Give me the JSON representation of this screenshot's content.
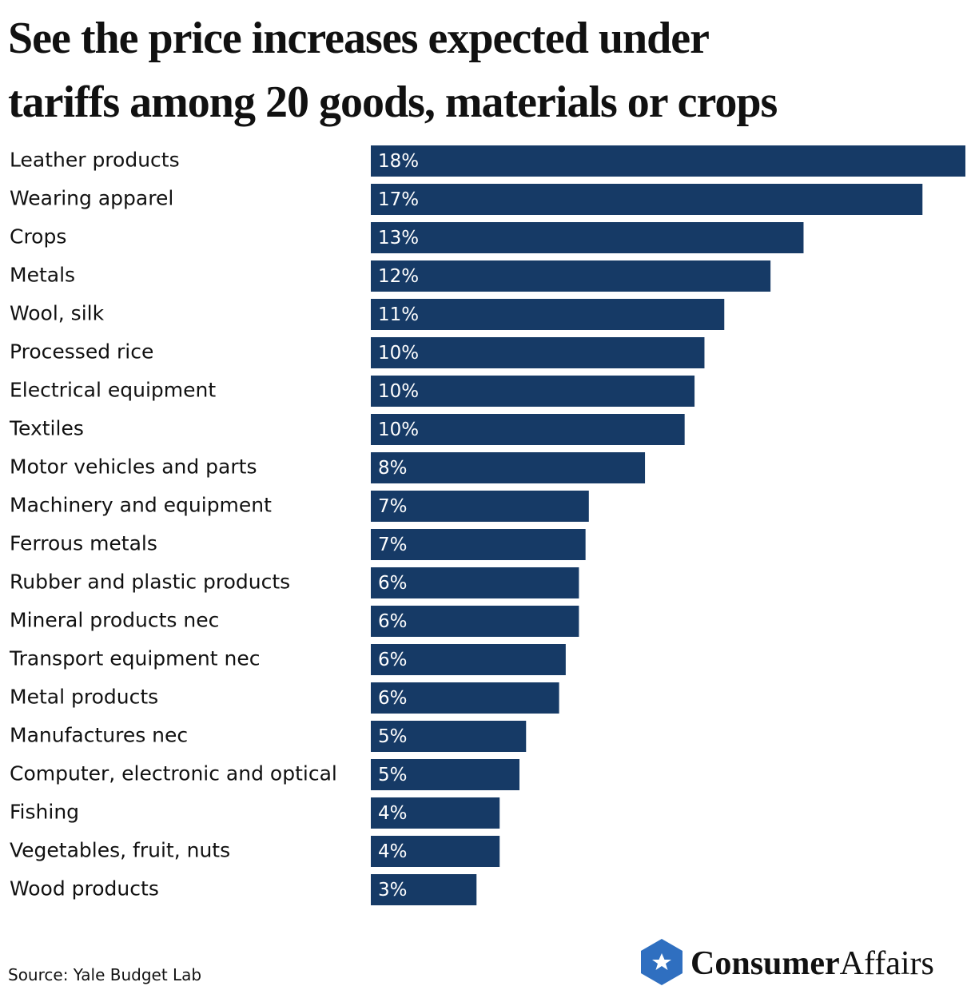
{
  "chart_data": {
    "type": "bar",
    "orientation": "horizontal",
    "title": "See the price increases expected under tariffs among 20 goods, materials or crops",
    "categories": [
      "Leather products",
      "Wearing apparel",
      "Crops",
      "Metals",
      "Wool, silk",
      "Processed rice",
      "Electrical equipment",
      "Textiles",
      "Motor vehicles and parts",
      "Machinery and equipment",
      "Ferrous metals",
      "Rubber and plastic products",
      "Mineral products nec",
      "Transport equipment nec",
      "Metal products",
      "Manufactures nec",
      "Computer, electronic and optical",
      "Fishing",
      "Vegetables, fruit, nuts",
      "Wood products"
    ],
    "values": [
      18.0,
      16.7,
      13.1,
      12.1,
      10.7,
      10.1,
      9.8,
      9.5,
      8.3,
      6.6,
      6.5,
      6.3,
      6.3,
      5.9,
      5.7,
      4.7,
      4.5,
      3.9,
      3.9,
      3.2
    ],
    "value_labels": [
      "18%",
      "17%",
      "13%",
      "12%",
      "11%",
      "10%",
      "10%",
      "10%",
      "8%",
      "7%",
      "7%",
      "6%",
      "6%",
      "6%",
      "6%",
      "5%",
      "5%",
      "4%",
      "4%",
      "3%"
    ],
    "color": "#163a66",
    "xlim": [
      0,
      18
    ],
    "source": "Source: Yale Budget Lab",
    "logo": {
      "bold": "Consumer",
      "light": "Affairs"
    }
  }
}
